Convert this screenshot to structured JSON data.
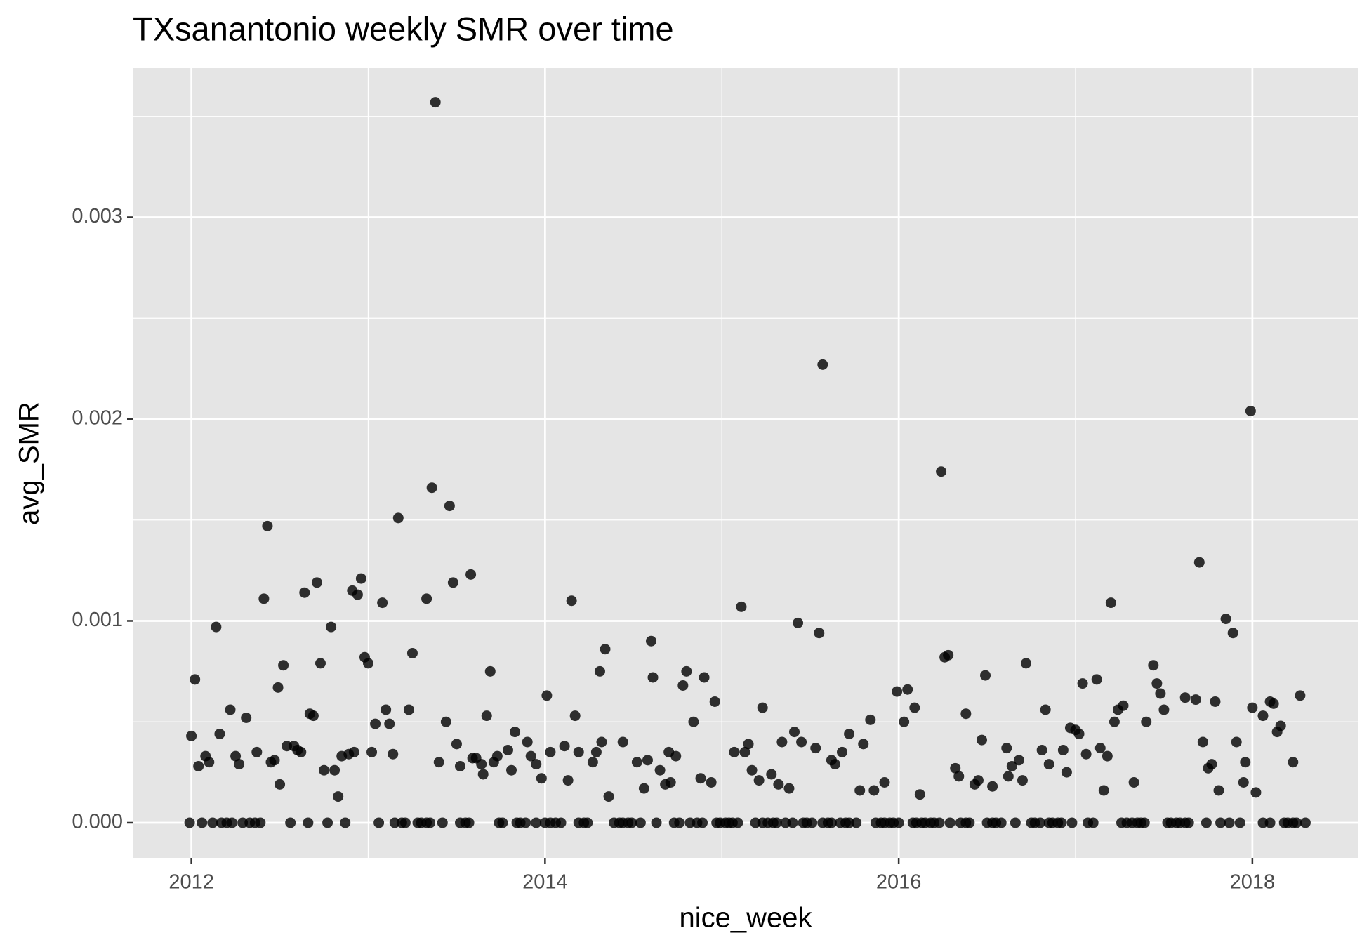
{
  "chart_data": {
    "type": "scatter",
    "title": "TXsanantonio weekly SMR over time",
    "x_label": "nice_week",
    "y_label": "avg_SMR",
    "color": "#000000",
    "grid": true,
    "xlim": [
      2011.672,
      2018.6
    ],
    "xticks": [
      2012,
      2014,
      2016,
      2018
    ],
    "ylim": [
      -0.000174,
      0.003739
    ],
    "yticks": [
      {
        "value": 0,
        "label": "0.000"
      },
      0.001,
      0.002,
      0.003
    ],
    "x": [
      2011.99,
      2012.06,
      2012.12,
      2012.17,
      2012.2,
      2012.23,
      2012.29,
      2012.33,
      2012.36,
      2012.39,
      2012.56,
      2012.66,
      2012.77,
      2012.87,
      2013.06,
      2013.15,
      2013.19,
      2013.21,
      2013.28,
      2013.3,
      2013.33,
      2013.35,
      2013.42,
      2013.52,
      2013.55,
      2013.57,
      2013.74,
      2013.76,
      2013.84,
      2013.86,
      2013.89,
      2013.95,
      2014.0,
      2014.03,
      2014.06,
      2014.09,
      2014.19,
      2014.22,
      2014.24,
      2014.39,
      2014.42,
      2014.44,
      2014.47,
      2014.49,
      2014.54,
      2014.63,
      2014.73,
      2014.76,
      2014.82,
      2014.86,
      2014.89,
      2014.97,
      2014.99,
      2015.02,
      2015.04,
      2015.06,
      2015.09,
      2015.19,
      2015.23,
      2015.26,
      2015.29,
      2015.31,
      2015.36,
      2015.4,
      2015.46,
      2015.48,
      2015.51,
      2015.57,
      2015.6,
      2015.62,
      2015.67,
      2015.7,
      2015.72,
      2015.76,
      2015.87,
      2015.9,
      2015.92,
      2015.95,
      2015.97,
      2016.0,
      2016.08,
      2016.1,
      2016.13,
      2016.15,
      2016.18,
      2016.2,
      2016.23,
      2016.29,
      2016.35,
      2016.38,
      2016.4,
      2016.5,
      2016.53,
      2016.55,
      2016.58,
      2016.66,
      2016.75,
      2016.77,
      2016.8,
      2016.85,
      2016.87,
      2016.9,
      2016.92,
      2016.98,
      2017.07,
      2017.1,
      2017.26,
      2017.29,
      2017.32,
      2017.35,
      2017.37,
      2017.39,
      2017.52,
      2017.54,
      2017.57,
      2017.59,
      2017.62,
      2017.64,
      2017.74,
      2017.82,
      2017.87,
      2017.93,
      2018.06,
      2018.1,
      2018.18,
      2018.2,
      2018.23,
      2018.25,
      2018.3,
      2012.0,
      2012.02,
      2012.04,
      2012.08,
      2012.1,
      2012.14,
      2012.16,
      2012.22,
      2012.25,
      2012.27,
      2012.31,
      2012.37,
      2012.41,
      2012.43,
      2012.45,
      2012.47,
      2012.49,
      2012.5,
      2012.52,
      2012.54,
      2012.58,
      2012.6,
      2012.62,
      2012.64,
      2012.67,
      2012.69,
      2012.71,
      2012.73,
      2012.75,
      2012.79,
      2012.81,
      2012.83,
      2012.85,
      2012.89,
      2012.91,
      2012.92,
      2012.94,
      2012.96,
      2012.98,
      2013.0,
      2013.02,
      2013.04,
      2013.08,
      2013.1,
      2013.12,
      2013.14,
      2013.17,
      2013.23,
      2013.25,
      2013.33,
      2013.36,
      2013.38,
      2013.4,
      2013.44,
      2013.46,
      2013.48,
      2013.5,
      2013.52,
      2013.58,
      2013.59,
      2013.61,
      2013.64,
      2013.65,
      2013.67,
      2013.69,
      2013.71,
      2013.73,
      2013.79,
      2013.81,
      2013.83,
      2013.9,
      2013.92,
      2013.95,
      2013.98,
      2014.01,
      2014.03,
      2014.11,
      2014.13,
      2014.15,
      2014.17,
      2014.19,
      2014.27,
      2014.29,
      2014.31,
      2014.32,
      2014.34,
      2014.36,
      2014.44,
      2014.52,
      2014.56,
      2014.58,
      2014.6,
      2014.61,
      2014.65,
      2014.68,
      2014.7,
      2014.71,
      2014.74,
      2014.78,
      2014.8,
      2014.84,
      2014.88,
      2014.9,
      2014.94,
      2014.96,
      2015.07,
      2015.11,
      2015.13,
      2015.15,
      2015.17,
      2015.21,
      2015.23,
      2015.28,
      2015.32,
      2015.34,
      2015.38,
      2015.41,
      2015.43,
      2015.45,
      2015.53,
      2015.55,
      2015.57,
      2015.62,
      2015.64,
      2015.68,
      2015.72,
      2015.78,
      2015.8,
      2015.84,
      2015.86,
      2015.92,
      2015.99,
      2016.03,
      2016.05,
      2016.09,
      2016.12,
      2016.24,
      2016.26,
      2016.28,
      2016.32,
      2016.34,
      2016.38,
      2016.43,
      2016.45,
      2016.47,
      2016.49,
      2016.53,
      2016.61,
      2016.62,
      2016.64,
      2016.68,
      2016.7,
      2016.72,
      2016.81,
      2016.83,
      2016.85,
      2016.93,
      2016.95,
      2016.97,
      2017.0,
      2017.02,
      2017.04,
      2017.06,
      2017.12,
      2017.14,
      2017.16,
      2017.18,
      2017.2,
      2017.22,
      2017.24,
      2017.27,
      2017.33,
      2017.4,
      2017.44,
      2017.46,
      2017.48,
      2017.5,
      2017.62,
      2017.68,
      2017.7,
      2017.72,
      2017.75,
      2017.77,
      2017.79,
      2017.81,
      2017.85,
      2017.89,
      2017.91,
      2017.95,
      2017.96,
      2017.99,
      2018.0,
      2018.02,
      2018.06,
      2018.1,
      2018.12,
      2018.14,
      2018.16,
      2018.23,
      2018.27
    ],
    "values": [
      0,
      0,
      0,
      0,
      0,
      0,
      0,
      0,
      0,
      0,
      0,
      0,
      0,
      0,
      0,
      0,
      0,
      0,
      0,
      0,
      0,
      0,
      0,
      0,
      0,
      0,
      0,
      0,
      0,
      0,
      0,
      0,
      0,
      0,
      0,
      0,
      0,
      0,
      0,
      0,
      0,
      0,
      0,
      0,
      0,
      0,
      0,
      0,
      0,
      0,
      0,
      0,
      0,
      0,
      0,
      0,
      0,
      0,
      0,
      0,
      0,
      0,
      0,
      0,
      0,
      0,
      0,
      0,
      0,
      0,
      0,
      0,
      0,
      0,
      0,
      0,
      0,
      0,
      0,
      0,
      0,
      0,
      0,
      0,
      0,
      0,
      0,
      0,
      0,
      0,
      0,
      0,
      0,
      0,
      0,
      0,
      0,
      0,
      0,
      0,
      0,
      0,
      0,
      0,
      0,
      0,
      0,
      0,
      0,
      0,
      0,
      0,
      0,
      0,
      0,
      0,
      0,
      0,
      0,
      0,
      0,
      0,
      0,
      0,
      0,
      0,
      0,
      0,
      0,
      0.00043,
      0.00071,
      0.00028,
      0.00033,
      0.0003,
      0.00097,
      0.00044,
      0.00056,
      0.00033,
      0.00029,
      0.00052,
      0.00035,
      0.00111,
      0.00147,
      0.0003,
      0.00031,
      0.00067,
      0.00019,
      0.00078,
      0.00038,
      0.00038,
      0.00036,
      0.00035,
      0.00114,
      0.00054,
      0.00053,
      0.00119,
      0.00079,
      0.00026,
      0.00097,
      0.00026,
      0.00013,
      0.00033,
      0.00034,
      0.00115,
      0.00035,
      0.00113,
      0.00121,
      0.00082,
      0.00079,
      0.00035,
      0.00049,
      0.00109,
      0.00056,
      0.00049,
      0.00034,
      0.00151,
      0.00056,
      0.00084,
      0.00111,
      0.00166,
      0.00357,
      0.0003,
      0.0005,
      0.00157,
      0.00119,
      0.00039,
      0.00028,
      0.00123,
      0.00032,
      0.00032,
      0.00029,
      0.00024,
      0.00053,
      0.00075,
      0.0003,
      0.00033,
      0.00036,
      0.00026,
      0.00045,
      0.0004,
      0.00033,
      0.00029,
      0.00022,
      0.00063,
      0.00035,
      0.00038,
      0.00021,
      0.0011,
      0.00053,
      0.00035,
      0.0003,
      0.00035,
      0.00075,
      0.0004,
      0.00086,
      0.00013,
      0.0004,
      0.0003,
      0.00017,
      0.00031,
      0.0009,
      0.00072,
      0.00026,
      0.00019,
      0.00035,
      0.0002,
      0.00033,
      0.00068,
      0.00075,
      0.0005,
      0.00022,
      0.00072,
      0.0002,
      0.0006,
      0.00035,
      0.00107,
      0.00035,
      0.00039,
      0.00026,
      0.00021,
      0.00057,
      0.00024,
      0.00019,
      0.0004,
      0.00017,
      0.00045,
      0.00099,
      0.0004,
      0.00037,
      0.00094,
      0.00227,
      0.00031,
      0.00029,
      0.00035,
      0.00044,
      0.00016,
      0.00039,
      0.00051,
      0.00016,
      0.0002,
      0.00065,
      0.0005,
      0.00066,
      0.00057,
      0.00014,
      0.00174,
      0.00082,
      0.00083,
      0.00027,
      0.00023,
      0.00054,
      0.00019,
      0.00021,
      0.00041,
      0.00073,
      0.00018,
      0.00037,
      0.00023,
      0.00028,
      0.00031,
      0.00021,
      0.00079,
      0.00036,
      0.00056,
      0.00029,
      0.00036,
      0.00025,
      0.00047,
      0.00046,
      0.00044,
      0.00069,
      0.00034,
      0.00071,
      0.00037,
      0.00016,
      0.00033,
      0.00109,
      0.0005,
      0.00056,
      0.00058,
      0.0002,
      0.0005,
      0.00078,
      0.00069,
      0.00064,
      0.00056,
      0.00062,
      0.00061,
      0.00129,
      0.0004,
      0.00027,
      0.00029,
      0.0006,
      0.00016,
      0.00101,
      0.00094,
      0.0004,
      0.0002,
      0.0003,
      0.00204,
      0.00057,
      0.00015,
      0.00053,
      0.0006,
      0.00059,
      0.00045,
      0.00048,
      0.0003,
      0.00063
    ]
  }
}
